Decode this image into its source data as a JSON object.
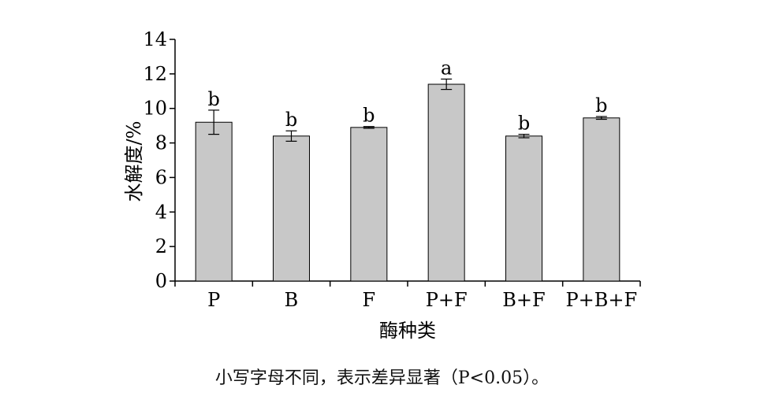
{
  "chart_data": {
    "type": "bar",
    "categories": [
      "P",
      "B",
      "F",
      "P+F",
      "B+F",
      "P+B+F"
    ],
    "values": [
      9.2,
      8.4,
      8.9,
      11.4,
      8.4,
      9.45
    ],
    "errors": [
      0.7,
      0.3,
      0.05,
      0.3,
      0.1,
      0.08
    ],
    "significance_letters": [
      "b",
      "b",
      "b",
      "a",
      "b",
      "b"
    ],
    "title": "",
    "xlabel": "酶种类",
    "ylabel": "水解度/%",
    "ylim": [
      0,
      14
    ],
    "yticks": [
      0,
      2,
      4,
      6,
      8,
      10,
      12,
      14
    ],
    "grid": false,
    "bar_color": "#c8c8c8",
    "bar_edge_color": "#000000"
  },
  "caption": "小写字母不同，表示差异显著（P<0.05）。"
}
